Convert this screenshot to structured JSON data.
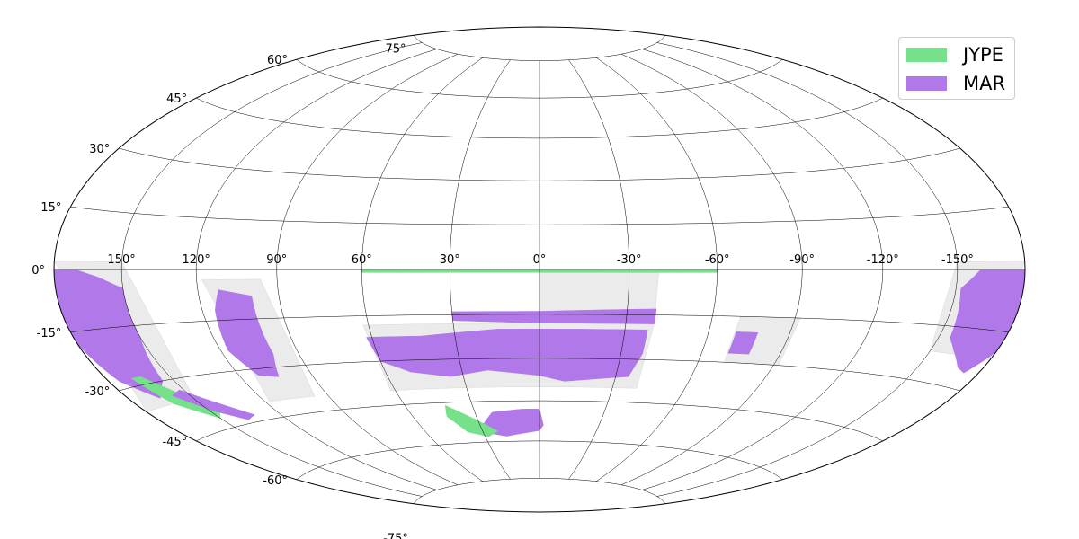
{
  "chart_data": {
    "type": "heatmap",
    "projection": "hammer-aitoff",
    "longitude_ticks": [
      150,
      120,
      90,
      60,
      30,
      0,
      -30,
      -60,
      -90,
      -120,
      -150
    ],
    "longitude_tick_labels": [
      "150°",
      "120°",
      "90°",
      "60°",
      "30°",
      "0°",
      "-30°",
      "-60°",
      "-90°",
      "-120°",
      "-150°"
    ],
    "latitude_ticks": [
      75,
      60,
      45,
      30,
      15,
      0,
      -15,
      -30,
      -45,
      -60,
      -75
    ],
    "latitude_tick_labels": [
      "75°",
      "60°",
      "45°",
      "30°",
      "15°",
      "0°",
      "-15°",
      "-30°",
      "-45°",
      "-60°",
      "-75°"
    ],
    "grid": true,
    "legend": {
      "placement": "top-right",
      "entries": [
        {
          "name": "JYPE",
          "color": "#77e08a"
        },
        {
          "name": "MAR",
          "color": "#b078e8"
        }
      ]
    },
    "footprint_color": "#ebebeb",
    "regions": [
      {
        "name": "MAR",
        "color": "#b078e8",
        "outline": [
          [
            -160,
            0
          ],
          [
            -180,
            0
          ],
          [
            -180,
            -20
          ],
          [
            -173,
            -26
          ],
          [
            -168,
            -25
          ],
          [
            -160,
            -21
          ],
          [
            -155,
            -18
          ],
          [
            -152,
            -5
          ]
        ]
      },
      {
        "name": "MAR",
        "color": "#b078e8",
        "outline": [
          [
            180,
            0
          ],
          [
            180,
            -18
          ],
          [
            175,
            -28
          ],
          [
            165,
            -34
          ],
          [
            155,
            -30
          ],
          [
            150,
            -18
          ],
          [
            150,
            -5
          ],
          [
            160,
            -2
          ],
          [
            170,
            0
          ]
        ]
      },
      {
        "name": "JYPE",
        "color": "#77e08a",
        "outline": [
          [
            168,
            -28
          ],
          [
            162,
            -36
          ],
          [
            150,
            -42
          ],
          [
            145,
            -40
          ],
          [
            155,
            -33
          ],
          [
            163,
            -28
          ]
        ]
      },
      {
        "name": "MAR",
        "color": "#b078e8",
        "outline": [
          [
            158,
            -34
          ],
          [
            148,
            -40
          ],
          [
            138,
            -44
          ],
          [
            132,
            -43
          ],
          [
            142,
            -38
          ],
          [
            152,
            -33
          ]
        ]
      },
      {
        "name": "MAR",
        "color": "#b078e8",
        "outline": [
          [
            112,
            -6
          ],
          [
            100,
            -8
          ],
          [
            100,
            -26
          ],
          [
            104,
            -33
          ],
          [
            112,
            -32
          ],
          [
            117,
            -24
          ],
          [
            115,
            -12
          ]
        ]
      },
      {
        "name": "MAR",
        "color": "#b078e8",
        "outline": [
          [
            62,
            -22
          ],
          [
            42,
            -22
          ],
          [
            15,
            -20
          ],
          [
            0,
            -20
          ],
          [
            -30,
            -20
          ],
          [
            -38,
            -20
          ],
          [
            -38,
            -28
          ],
          [
            -35,
            -36
          ],
          [
            -10,
            -38
          ],
          [
            0,
            -36
          ],
          [
            20,
            -34
          ],
          [
            35,
            -36
          ],
          [
            50,
            -34
          ],
          [
            60,
            -30
          ]
        ]
      },
      {
        "name": "MAR",
        "color": "#b078e8",
        "outline": [
          [
            0,
            -14
          ],
          [
            -40,
            -13
          ],
          [
            -40,
            -18
          ],
          [
            0,
            -18
          ],
          [
            30,
            -17
          ],
          [
            30,
            -14
          ]
        ]
      },
      {
        "name": "MAR",
        "color": "#b078e8",
        "outline": [
          [
            0,
            -48
          ],
          [
            -2,
            -54
          ],
          [
            0,
            -56
          ],
          [
            18,
            -58
          ],
          [
            32,
            -56
          ],
          [
            22,
            -49
          ],
          [
            8,
            -48
          ]
        ]
      },
      {
        "name": "JYPE",
        "color": "#77e08a",
        "outline": [
          [
            42,
            -46
          ],
          [
            30,
            -52
          ],
          [
            22,
            -56
          ],
          [
            28,
            -58
          ],
          [
            38,
            -56
          ],
          [
            44,
            -50
          ]
        ]
      },
      {
        "name": "JYPE",
        "color": "#77e08a",
        "outline": [
          [
            60,
            0
          ],
          [
            -60,
            0
          ],
          [
            -60,
            -1
          ],
          [
            60,
            -1
          ]
        ]
      },
      {
        "name": "MAR",
        "color": "#b078e8",
        "outline": [
          [
            -70,
            -20
          ],
          [
            -78,
            -20
          ],
          [
            -78,
            -27
          ],
          [
            -70,
            -27
          ]
        ]
      }
    ]
  }
}
